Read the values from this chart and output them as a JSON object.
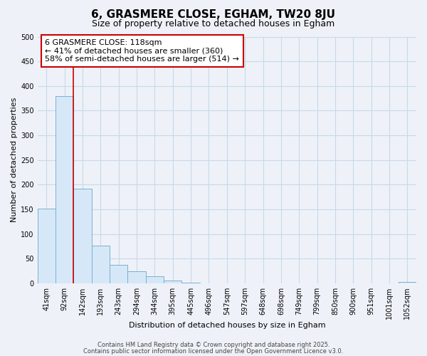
{
  "title": "6, GRASMERE CLOSE, EGHAM, TW20 8JU",
  "subtitle": "Size of property relative to detached houses in Egham",
  "xlabel": "Distribution of detached houses by size in Egham",
  "ylabel": "Number of detached properties",
  "bar_labels": [
    "41sqm",
    "92sqm",
    "142sqm",
    "193sqm",
    "243sqm",
    "294sqm",
    "344sqm",
    "395sqm",
    "445sqm",
    "496sqm",
    "547sqm",
    "597sqm",
    "648sqm",
    "698sqm",
    "749sqm",
    "799sqm",
    "850sqm",
    "900sqm",
    "951sqm",
    "1001sqm",
    "1052sqm"
  ],
  "bar_values": [
    152,
    380,
    192,
    77,
    37,
    25,
    15,
    6,
    2,
    0,
    0,
    0,
    0,
    0,
    0,
    0,
    0,
    0,
    0,
    0,
    3
  ],
  "bar_color": "#d6e8f7",
  "bar_edge_color": "#7ab0d4",
  "ylim": [
    0,
    500
  ],
  "yticks": [
    0,
    50,
    100,
    150,
    200,
    250,
    300,
    350,
    400,
    450,
    500
  ],
  "vline_x": 1.5,
  "vline_color": "#cc0000",
  "annotation_title": "6 GRASMERE CLOSE: 118sqm",
  "annotation_line1": "← 41% of detached houses are smaller (360)",
  "annotation_line2": "58% of semi-detached houses are larger (514) →",
  "annotation_box_facecolor": "#ffffff",
  "annotation_box_edgecolor": "#cc0000",
  "background_color": "#eef2f8",
  "plot_bg_color": "#eef2f8",
  "grid_color": "#c8d8e8",
  "footer1": "Contains HM Land Registry data © Crown copyright and database right 2025.",
  "footer2": "Contains public sector information licensed under the Open Government Licence v3.0.",
  "title_fontsize": 11,
  "subtitle_fontsize": 9,
  "axis_label_fontsize": 8,
  "tick_fontsize": 7,
  "annotation_fontsize": 8,
  "footer_fontsize": 6
}
